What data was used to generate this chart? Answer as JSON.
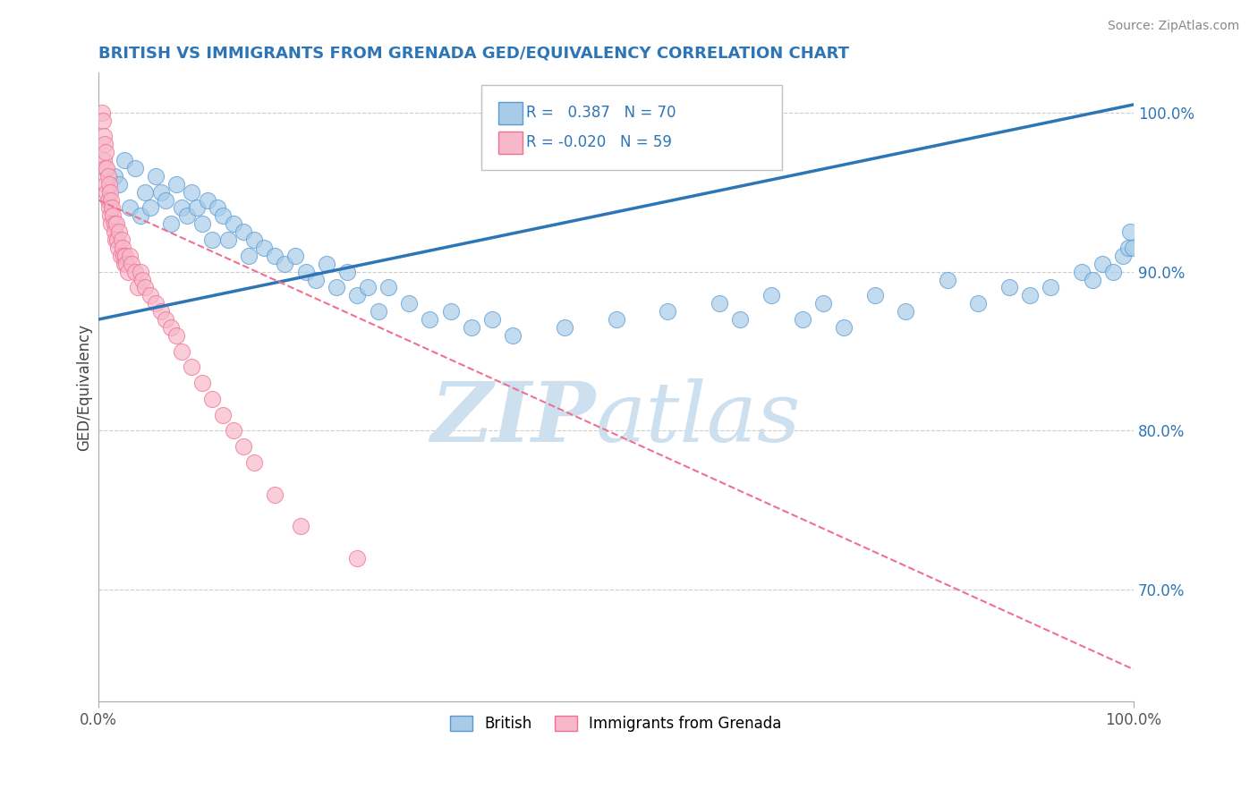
{
  "title": "BRITISH VS IMMIGRANTS FROM GRENADA GED/EQUIVALENCY CORRELATION CHART",
  "source": "Source: ZipAtlas.com",
  "ylabel": "GED/Equivalency",
  "xlim": [
    0.0,
    100.0
  ],
  "ylim": [
    63.0,
    102.5
  ],
  "blue_R": 0.387,
  "blue_N": 70,
  "pink_R": -0.02,
  "pink_N": 59,
  "blue_color": "#a8cce8",
  "pink_color": "#f7b8cb",
  "blue_edge_color": "#5b9bd5",
  "pink_edge_color": "#f07090",
  "blue_line_color": "#2e75b6",
  "pink_line_color": "#f07090",
  "title_color": "#2e75b6",
  "watermark_zip_color": "#cde0f0",
  "watermark_atlas_color": "#cde0f0",
  "legend_british": "British",
  "legend_grenada": "Immigrants from Grenada",
  "blue_trend_x": [
    0,
    100
  ],
  "blue_trend_y": [
    87.0,
    100.5
  ],
  "pink_trend_x": [
    0,
    100
  ],
  "pink_trend_y": [
    94.5,
    65.0
  ],
  "blue_x": [
    1.5,
    2.0,
    2.5,
    3.0,
    3.5,
    4.0,
    4.5,
    5.0,
    5.5,
    6.0,
    6.5,
    7.0,
    7.5,
    8.0,
    8.5,
    9.0,
    9.5,
    10.0,
    10.5,
    11.0,
    11.5,
    12.0,
    12.5,
    13.0,
    14.0,
    14.5,
    15.0,
    16.0,
    17.0,
    18.0,
    19.0,
    20.0,
    21.0,
    22.0,
    23.0,
    24.0,
    25.0,
    26.0,
    27.0,
    28.0,
    30.0,
    32.0,
    34.0,
    36.0,
    38.0,
    40.0,
    45.0,
    50.0,
    55.0,
    60.0,
    62.0,
    65.0,
    68.0,
    70.0,
    72.0,
    75.0,
    78.0,
    82.0,
    85.0,
    88.0,
    90.0,
    92.0,
    95.0,
    96.0,
    97.0,
    98.0,
    99.0,
    99.5,
    99.7,
    99.9
  ],
  "blue_y": [
    96.0,
    95.5,
    97.0,
    94.0,
    96.5,
    93.5,
    95.0,
    94.0,
    96.0,
    95.0,
    94.5,
    93.0,
    95.5,
    94.0,
    93.5,
    95.0,
    94.0,
    93.0,
    94.5,
    92.0,
    94.0,
    93.5,
    92.0,
    93.0,
    92.5,
    91.0,
    92.0,
    91.5,
    91.0,
    90.5,
    91.0,
    90.0,
    89.5,
    90.5,
    89.0,
    90.0,
    88.5,
    89.0,
    87.5,
    89.0,
    88.0,
    87.0,
    87.5,
    86.5,
    87.0,
    86.0,
    86.5,
    87.0,
    87.5,
    88.0,
    87.0,
    88.5,
    87.0,
    88.0,
    86.5,
    88.5,
    87.5,
    89.5,
    88.0,
    89.0,
    88.5,
    89.0,
    90.0,
    89.5,
    90.5,
    90.0,
    91.0,
    91.5,
    92.5,
    91.5
  ],
  "pink_x": [
    0.3,
    0.4,
    0.5,
    0.5,
    0.6,
    0.6,
    0.7,
    0.7,
    0.8,
    0.8,
    0.9,
    0.9,
    1.0,
    1.0,
    1.1,
    1.1,
    1.2,
    1.2,
    1.3,
    1.4,
    1.5,
    1.5,
    1.6,
    1.7,
    1.8,
    1.9,
    2.0,
    2.1,
    2.2,
    2.3,
    2.4,
    2.5,
    2.6,
    2.7,
    2.8,
    3.0,
    3.2,
    3.5,
    3.8,
    4.0,
    4.2,
    4.5,
    5.0,
    5.5,
    6.0,
    6.5,
    7.0,
    7.5,
    8.0,
    9.0,
    10.0,
    11.0,
    12.0,
    13.0,
    14.0,
    15.0,
    17.0,
    19.5,
    25.0
  ],
  "pink_y": [
    100.0,
    99.5,
    98.5,
    97.0,
    98.0,
    96.5,
    97.5,
    95.5,
    96.5,
    95.0,
    96.0,
    94.5,
    95.5,
    94.0,
    95.0,
    93.5,
    94.5,
    93.0,
    94.0,
    93.5,
    93.0,
    92.5,
    92.0,
    93.0,
    92.0,
    91.5,
    92.5,
    91.0,
    92.0,
    91.5,
    91.0,
    90.5,
    91.0,
    90.5,
    90.0,
    91.0,
    90.5,
    90.0,
    89.0,
    90.0,
    89.5,
    89.0,
    88.5,
    88.0,
    87.5,
    87.0,
    86.5,
    86.0,
    85.0,
    84.0,
    83.0,
    82.0,
    81.0,
    80.0,
    79.0,
    78.0,
    76.0,
    74.0,
    72.0
  ]
}
